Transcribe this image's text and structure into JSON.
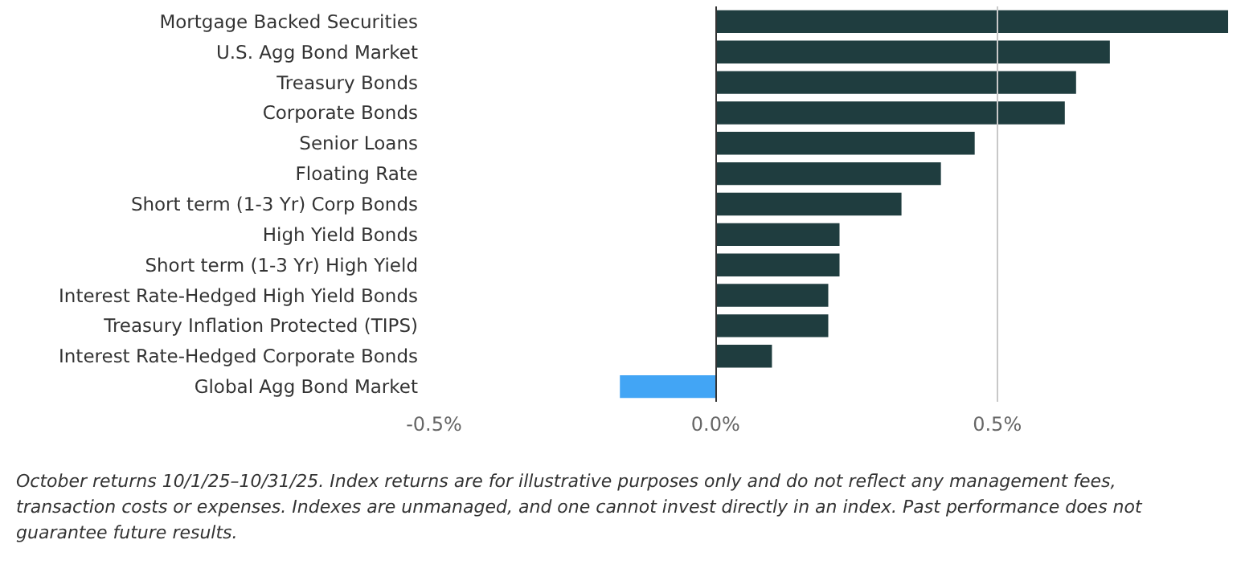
{
  "chart_data": {
    "type": "bar",
    "orientation": "horizontal",
    "categories": [
      "Mortgage Backed Securities",
      "U.S. Agg Bond Market",
      "Treasury Bonds",
      "Corporate Bonds",
      "Senior Loans",
      "Floating Rate",
      "Short term (1-3 Yr) Corp Bonds",
      "High Yield Bonds",
      "Short term (1-3 Yr) High Yield",
      "Interest Rate-Hedged High Yield Bonds",
      "Treasury Inflation Protected (TIPS)",
      "Interest Rate-Hedged Corporate Bonds",
      "Global Agg Bond Market"
    ],
    "values": [
      0.91,
      0.7,
      0.64,
      0.62,
      0.46,
      0.4,
      0.33,
      0.22,
      0.22,
      0.2,
      0.2,
      0.1,
      -0.17
    ],
    "colors": [
      "#1f3d3f",
      "#1f3d3f",
      "#1f3d3f",
      "#1f3d3f",
      "#1f3d3f",
      "#1f3d3f",
      "#1f3d3f",
      "#1f3d3f",
      "#1f3d3f",
      "#1f3d3f",
      "#1f3d3f",
      "#1f3d3f",
      "#42a5f5"
    ],
    "xticks": [
      {
        "value": -0.5,
        "label": "-0.5%"
      },
      {
        "value": 0,
        "label": "0.0%"
      },
      {
        "value": 0.5,
        "label": "0.5%"
      }
    ],
    "xlim": [
      -0.5,
      0.91
    ],
    "ref_lines": [
      {
        "axis": "x",
        "value": 0,
        "color": "#333333"
      },
      {
        "axis": "x",
        "value": 0.5,
        "color": "#c8c8c8"
      }
    ],
    "annotations": [
      "October returns 10/1/25–10/31/25. Index returns are for illustrative purposes only and do not reflect any management fees, transaction costs or expenses. Indexes are unmanaged, and one cannot invest directly in an index. Past performance does not guarantee future results."
    ]
  }
}
